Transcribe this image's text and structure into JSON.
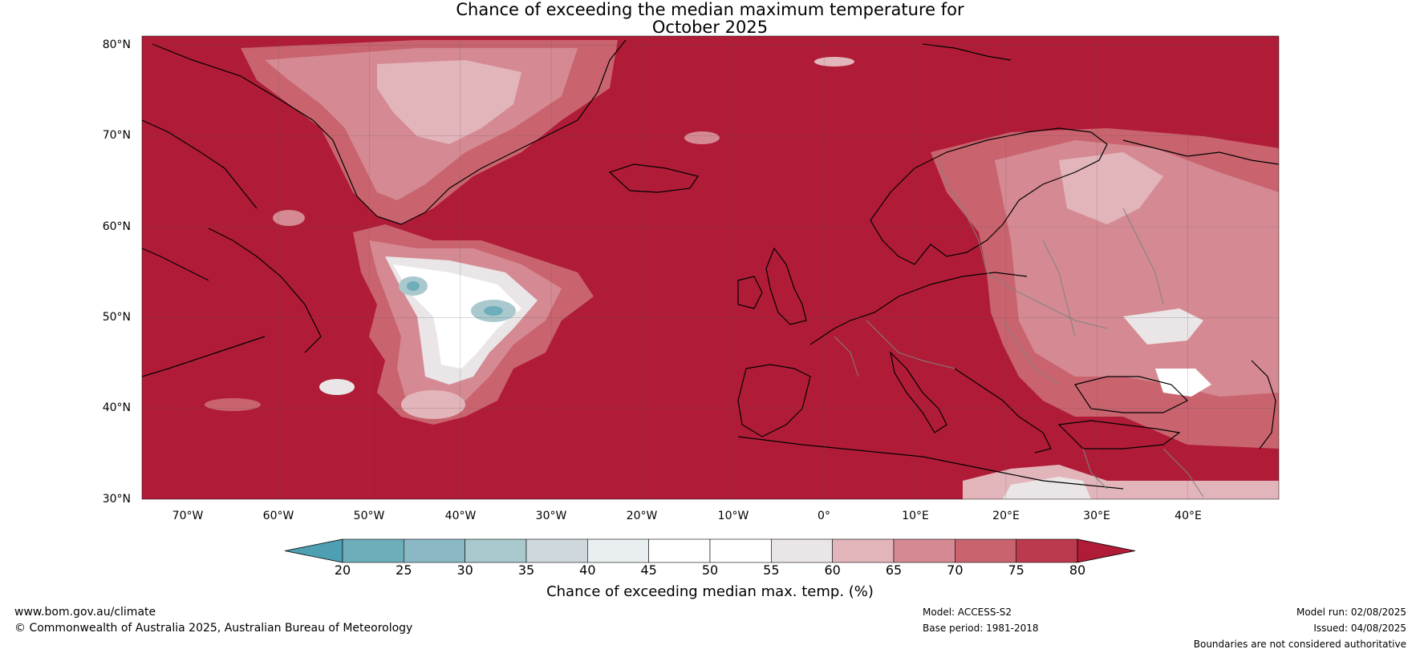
{
  "title_line1": "Chance of exceeding the median maximum temperature for",
  "title_line2": "October 2025",
  "map": {
    "projection": "equirectangular",
    "lon_range": [
      -75,
      50
    ],
    "lat_range": [
      30,
      81
    ],
    "lat_ticks": [
      "80°N",
      "70°N",
      "60°N",
      "50°N",
      "40°N",
      "30°N"
    ],
    "lon_ticks": [
      "70°W",
      "60°W",
      "50°W",
      "40°W",
      "30°W",
      "20°W",
      "10°W",
      "0°",
      "10°E",
      "20°E",
      "30°E",
      "40°E"
    ],
    "background_color": "#b01c37",
    "land_outline_color": "#000000",
    "border_color": "#808080"
  },
  "colorbar": {
    "ticks": [
      "20",
      "25",
      "30",
      "35",
      "40",
      "45",
      "50",
      "55",
      "60",
      "65",
      "70",
      "75",
      "80"
    ],
    "colors": [
      "#4e9fb1",
      "#6eaebb",
      "#8ab8c4",
      "#a9c9cf",
      "#cfd8dc",
      "#e9eff0",
      "#ffffff",
      "#ffffff",
      "#eae6e7",
      "#e2b5bb",
      "#d58a93",
      "#c9646f",
      "#bc3a4d",
      "#b01c37"
    ],
    "label": "Chance of exceeding median max. temp. (%)"
  },
  "footer": {
    "website": "www.bom.gov.au/climate",
    "copyright": "© Commonwealth of Australia 2025, Australian Bureau of Meteorology",
    "model": "Model: ACCESS-S2",
    "base_period": "Base period: 1981-2018",
    "model_run": "Model run: 02/08/2025",
    "issued": "Issued: 04/08/2025",
    "disclaimer": "Boundaries are not considered authoritative"
  }
}
